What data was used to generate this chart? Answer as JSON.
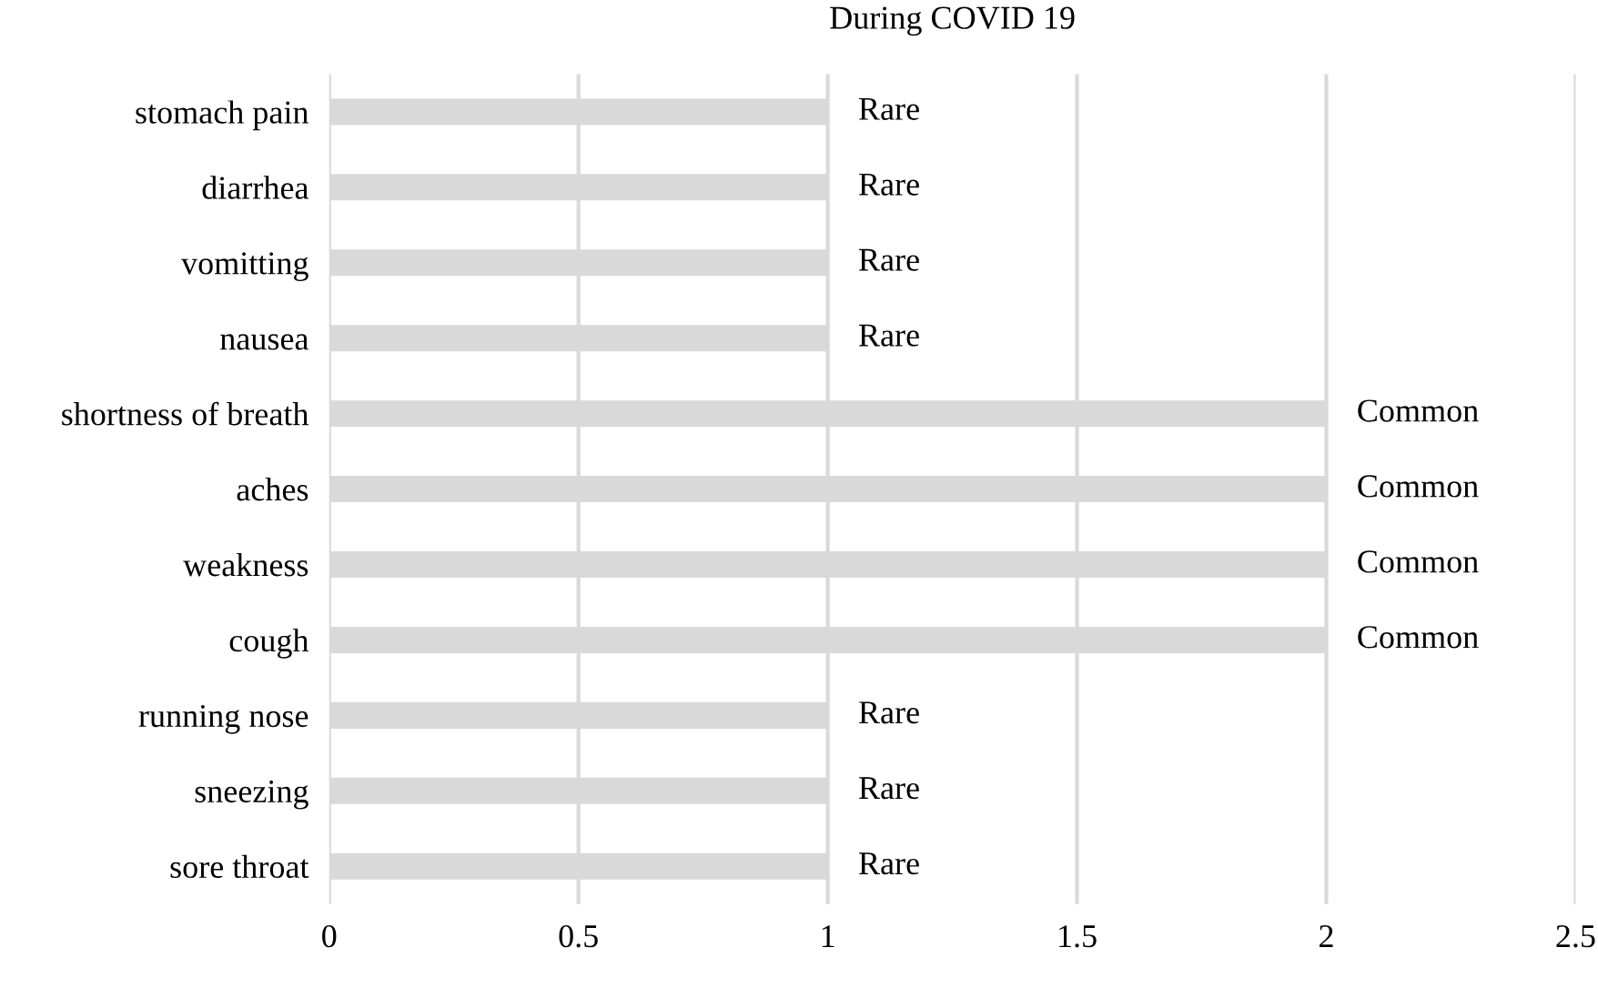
{
  "chart_data": {
    "type": "bar",
    "orientation": "horizontal",
    "title": "During COVID 19",
    "categories": [
      "stomach pain",
      "diarrhea",
      "vomitting",
      "nausea",
      "shortness of breath",
      "aches",
      "weakness",
      "cough",
      "running nose",
      "sneezing",
      "sore throat"
    ],
    "values": [
      1,
      1,
      1,
      1,
      2,
      2,
      2,
      2,
      1,
      1,
      1
    ],
    "value_labels": [
      "Rare",
      "Rare",
      "Rare",
      "Rare",
      "Common",
      "Common",
      "Common",
      "Common",
      "Rare",
      "Rare",
      "Rare"
    ],
    "color": "#d9d9d9",
    "xlim": [
      0,
      2.5
    ],
    "xticks": [
      0,
      0.5,
      1,
      1.5,
      2,
      2.5
    ],
    "grid": "x",
    "legend": false
  }
}
